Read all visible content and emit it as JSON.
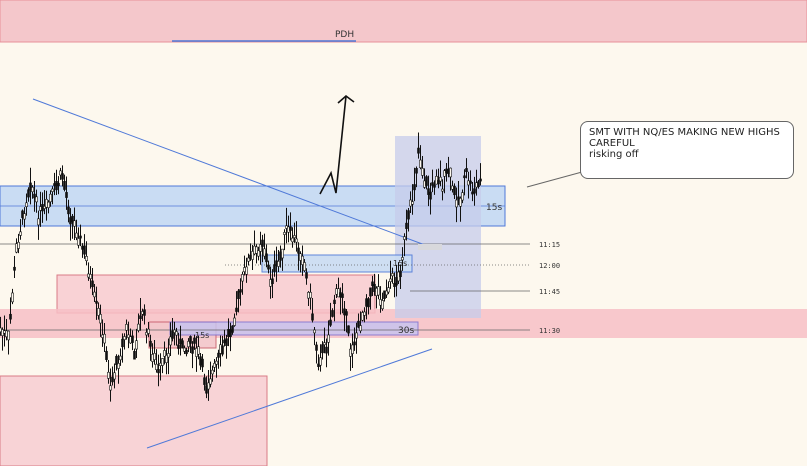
{
  "chart": {
    "level_label": "PDH",
    "note_lines": [
      "SMT WITH NQ/ES MAKING NEW HIGHS",
      "CAREFUL",
      "risking off"
    ],
    "zone_tags": {
      "upper": "15s",
      "mid": "15s",
      "lower": "30s",
      "small": "15s"
    },
    "time_labels": [
      "11:15",
      "12:00",
      "11:45",
      "11:30"
    ]
  },
  "colors": {
    "background": "#fdf8ee",
    "supply_zone": "#f4c7cb",
    "demand_zone": "#c9dcf3",
    "trendline": "#4f79d8",
    "candle": "#1a1a1a",
    "highlight_box": "#c5cceb"
  },
  "icons": {
    "arrow": "hand-drawn-up-arrow-icon"
  }
}
